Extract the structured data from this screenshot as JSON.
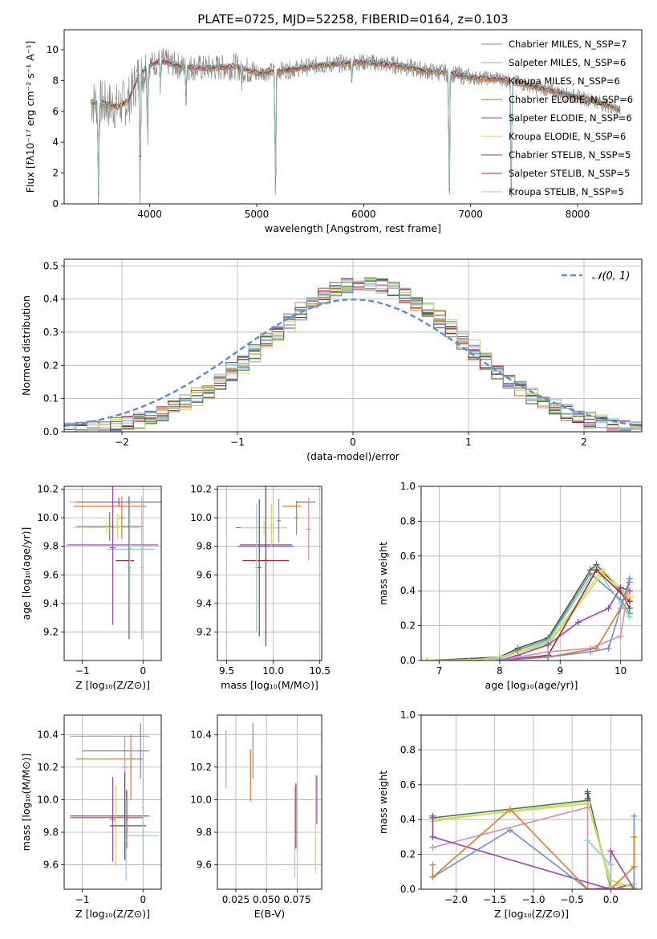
{
  "title": "PLATE=0725, MJD=52258, FIBERID=0164, z=0.103",
  "colors": [
    "#5d9e8b",
    "#e08aa8",
    "#e57a1f",
    "#6a8f2e",
    "#a13cc1",
    "#d7d84a",
    "#555555",
    "#b81f2b",
    "#7fd3d8",
    "#8c8c8c",
    "#6a8fd8",
    "#c5e06f",
    "#3a7b54",
    "#b4b4b4"
  ],
  "chart_data": [
    {
      "id": "spectrum",
      "type": "line",
      "xlabel": "wavelength [Angstrom, rest frame]",
      "ylabel": "Flux [fλ10⁻¹⁷ erg cm⁻² s⁻¹ A⁻¹]",
      "xlim": [
        3200,
        8600
      ],
      "ylim": [
        0,
        11.3
      ],
      "xticks": [
        4000,
        5000,
        6000,
        7000,
        8000
      ],
      "yticks": [
        0,
        2,
        4,
        6,
        8,
        10
      ],
      "grid": false,
      "legend_position": "right",
      "legend": [
        {
          "label": "Chabrier MILES, N_SSP=7",
          "color": "#5d9e8b"
        },
        {
          "label": "Salpeter MILES, N_SSP=6",
          "color": "#e08aa8"
        },
        {
          "label": "Kroupa MILES, N_SSP=6",
          "color": "#e57a1f"
        },
        {
          "label": "Chabrier ELODIE, N_SSP=6",
          "color": "#6a8f2e"
        },
        {
          "label": "Salpeter ELODIE, N_SSP=6",
          "color": "#a13cc1"
        },
        {
          "label": "Kroupa ELODIE, N_SSP=6",
          "color": "#d7d84a"
        },
        {
          "label": "Chabrier STELIB, N_SSP=5",
          "color": "#555555"
        },
        {
          "label": "Salpeter STELIB, N_SSP=5",
          "color": "#b81f2b"
        },
        {
          "label": "Kroupa STELIB, N_SSP=5",
          "color": "#7fd3d8"
        }
      ],
      "data_series": {
        "name": "data",
        "color": "#8c8c8c"
      },
      "continuum": {
        "x": [
          3450,
          3550,
          3700,
          3800,
          3900,
          4000,
          4100,
          4300,
          4500,
          4800,
          5000,
          5300,
          5600,
          6000,
          6300,
          6600,
          6800,
          7000,
          7300,
          7600,
          7900,
          8200,
          8400
        ],
        "y": [
          6.6,
          6.5,
          6.3,
          6.7,
          8.4,
          9.0,
          9.3,
          8.9,
          8.8,
          8.9,
          8.5,
          8.7,
          9.0,
          9.2,
          9.0,
          8.6,
          8.5,
          8.2,
          8.1,
          7.6,
          7.1,
          6.6,
          6.1
        ]
      },
      "absorption_features": [
        {
          "x": 3520,
          "y": 0
        },
        {
          "x": 3910,
          "y": 0
        },
        {
          "x": 3980,
          "y": 4.7
        },
        {
          "x": 4100,
          "y": 7.6
        },
        {
          "x": 4340,
          "y": 6.9
        },
        {
          "x": 4860,
          "y": 7.9
        },
        {
          "x": 5175,
          "y": 0
        },
        {
          "x": 5890,
          "y": 8.2
        },
        {
          "x": 6800,
          "y": 0
        },
        {
          "x": 7380,
          "y": 0
        }
      ]
    },
    {
      "id": "residual-histogram",
      "type": "histogram",
      "xlabel": "(data-model)/error",
      "ylabel": "Normed distribution",
      "xlim": [
        -2.5,
        2.5
      ],
      "ylim": [
        0,
        0.52
      ],
      "xticks": [
        -2,
        -1,
        0,
        1,
        2
      ],
      "yticks": [
        0.0,
        0.1,
        0.2,
        0.3,
        0.4,
        0.5
      ],
      "grid": true,
      "legend_position": "top-right",
      "legend": [
        {
          "label": "𝒩(0, 1)",
          "color": "#5b8bd9",
          "style": "dashed"
        }
      ],
      "bin_width": 0.1,
      "series_colors": [
        "#5d9e8b",
        "#e08aa8",
        "#e57a1f",
        "#6a8f2e",
        "#a13cc1",
        "#d7d84a",
        "#555555",
        "#b81f2b",
        "#7fd3d8",
        "#6a8fd8",
        "#c5e06f",
        "#3a7b54",
        "#b4b4b4"
      ]
    },
    {
      "id": "age-vs-z",
      "type": "errorbar",
      "xlabel": "Z [log₁₀(Z/Z⊙)]",
      "ylabel": "age  [log₁₀(age/yr)]",
      "xlim": [
        -1.3,
        0.3
      ],
      "ylim": [
        9.0,
        10.22
      ],
      "xticks": [
        -1,
        0
      ],
      "yticks": [
        9.2,
        9.4,
        9.6,
        9.8,
        10.0,
        10.2
      ],
      "grid": true,
      "points": [
        {
          "x": -0.55,
          "xerr": 0.65,
          "y": 10.11,
          "yerr": 0.0,
          "color": "#e08aa8"
        },
        {
          "x": -0.4,
          "xerr": 0.7,
          "y": 10.11,
          "yerr": 0.03,
          "color": "#a13cc1"
        },
        {
          "x": -0.55,
          "xerr": 0.6,
          "y": 10.08,
          "yerr": 0.0,
          "color": "#e57a1f"
        },
        {
          "x": -0.35,
          "xerr": 0.05,
          "y": 10.0,
          "yerr": 0.15,
          "color": "#e57a1f"
        },
        {
          "x": -0.55,
          "xerr": 0.55,
          "y": 9.94,
          "yerr": 0.1,
          "color": "#6a8f2e"
        },
        {
          "x": -0.6,
          "xerr": 0.55,
          "y": 9.93,
          "yerr": 0.04,
          "color": "#c5e06f"
        },
        {
          "x": -0.42,
          "xerr": 0.06,
          "y": 9.94,
          "yerr": 0.09,
          "color": "#d7d84a"
        },
        {
          "x": -0.2,
          "xerr": 0.4,
          "y": 9.78,
          "yerr": 0.01,
          "color": "#7fd3d8"
        },
        {
          "x": -0.5,
          "xerr": 0.75,
          "y": 9.81,
          "yerr": 0.0,
          "color": "#a13cc1"
        },
        {
          "x": -0.3,
          "xerr": 0.15,
          "y": 9.7,
          "yerr": 0.0,
          "color": "#b81f2b"
        },
        {
          "x": -0.5,
          "xerr": 0.05,
          "y": 9.79,
          "yerr": 0.54,
          "color": "#a13cc1"
        },
        {
          "x": -0.23,
          "xerr": 0.02,
          "y": 9.65,
          "yerr": 0.5,
          "color": "#555555"
        },
        {
          "x": -0.22,
          "xerr": 0.02,
          "y": 9.65,
          "yerr": 0.48,
          "color": "#7fd3d8"
        },
        {
          "x": -0.02,
          "xerr": 0.03,
          "y": 9.65,
          "yerr": 0.5,
          "color": "#b4b4b4"
        }
      ]
    },
    {
      "id": "age-vs-mass",
      "type": "errorbar",
      "xlabel": "mass [log₁₀(M/M⊙)]",
      "ylabel": "",
      "xlim": [
        9.4,
        10.52
      ],
      "ylim": [
        9.0,
        10.22
      ],
      "xticks": [
        9.5,
        10.0,
        10.5
      ],
      "yticks": [
        9.2,
        9.4,
        9.6,
        9.8,
        10.0,
        10.2
      ],
      "grid": true,
      "points": [
        {
          "x": 10.35,
          "xerr": 0.1,
          "y": 10.11,
          "yerr": 0.0,
          "color": "#a13cc1"
        },
        {
          "x": 10.38,
          "xerr": 0.02,
          "y": 9.92,
          "yerr": 0.22,
          "color": "#e08aa8"
        },
        {
          "x": 10.2,
          "xerr": 0.1,
          "y": 10.08,
          "yerr": 0.0,
          "color": "#e57a1f"
        },
        {
          "x": 10.25,
          "xerr": 0.02,
          "y": 10.0,
          "yerr": 0.12,
          "color": "#e57a1f"
        },
        {
          "x": 9.87,
          "xerr": 0.27,
          "y": 9.93,
          "yerr": 0.0,
          "color": "#6a8f2e"
        },
        {
          "x": 9.9,
          "xerr": 0.25,
          "y": 9.93,
          "yerr": 0.05,
          "color": "#c5e06f"
        },
        {
          "x": 9.92,
          "xerr": 0.28,
          "y": 9.81,
          "yerr": 0.0,
          "color": "#555555"
        },
        {
          "x": 9.92,
          "xerr": 0.3,
          "y": 9.8,
          "yerr": 0.0,
          "color": "#a13cc1"
        },
        {
          "x": 9.92,
          "xerr": 0.25,
          "y": 9.7,
          "yerr": 0.0,
          "color": "#b81f2b"
        },
        {
          "x": 9.92,
          "xerr": 0.02,
          "y": 9.7,
          "yerr": 0.6,
          "color": "#b81f2b"
        },
        {
          "x": 9.82,
          "xerr": 0.02,
          "y": 9.65,
          "yerr": 0.45,
          "color": "#7fd3d8"
        },
        {
          "x": 9.85,
          "xerr": 0.02,
          "y": 9.65,
          "yerr": 0.48,
          "color": "#555555"
        },
        {
          "x": 9.98,
          "xerr": 0.02,
          "y": 9.95,
          "yerr": 0.15,
          "color": "#d7d84a"
        },
        {
          "x": 10.06,
          "xerr": 0.02,
          "y": 9.98,
          "yerr": 0.15,
          "color": "#6a8fd8"
        }
      ]
    },
    {
      "id": "mass-weight-vs-age",
      "type": "line",
      "xlabel": "age  [log₁₀(age/yr)]",
      "ylabel": "mass weight",
      "xlim": [
        6.7,
        10.35
      ],
      "ylim": [
        0,
        1.0
      ],
      "xticks": [
        7,
        8,
        9,
        10
      ],
      "yticks": [
        0.0,
        0.2,
        0.4,
        0.6,
        0.8,
        1.0
      ],
      "grid": true,
      "series": [
        {
          "color": "#555555",
          "x": [
            6.8,
            8.0,
            8.3,
            8.8,
            9.5,
            9.6,
            10.0,
            10.15
          ],
          "y": [
            0.0,
            0.02,
            0.07,
            0.13,
            0.52,
            0.55,
            0.4,
            0.3
          ]
        },
        {
          "color": "#5d9e8b",
          "x": [
            6.8,
            8.0,
            8.3,
            8.8,
            9.5,
            10.0,
            10.15
          ],
          "y": [
            0.0,
            0.01,
            0.06,
            0.12,
            0.5,
            0.35,
            0.27
          ]
        },
        {
          "color": "#7fd3d8",
          "x": [
            6.8,
            8.0,
            8.8,
            9.6,
            10.0,
            10.15
          ],
          "y": [
            0.0,
            0.01,
            0.11,
            0.53,
            0.33,
            0.25
          ]
        },
        {
          "color": "#c5e06f",
          "x": [
            6.8,
            7.5,
            8.0,
            8.8,
            9.7,
            10.15
          ],
          "y": [
            0.0,
            0.0,
            0.02,
            0.1,
            0.52,
            0.37
          ]
        },
        {
          "color": "#d7d84a",
          "x": [
            6.8,
            7.5,
            8.0,
            8.8,
            9.7,
            10.15
          ],
          "y": [
            0.0,
            0.0,
            0.02,
            0.09,
            0.5,
            0.36
          ]
        },
        {
          "color": "#a13cc1",
          "x": [
            8.0,
            8.3,
            8.8,
            9.3,
            9.8,
            10.0,
            10.15
          ],
          "y": [
            0.0,
            0.03,
            0.09,
            0.22,
            0.3,
            0.42,
            0.4
          ]
        },
        {
          "color": "#b81f2b",
          "x": [
            8.0,
            8.8,
            9.6,
            10.15
          ],
          "y": [
            0.0,
            0.03,
            0.52,
            0.34
          ]
        },
        {
          "color": "#e08aa8",
          "x": [
            8.0,
            8.8,
            9.5,
            10.0,
            10.15
          ],
          "y": [
            0.0,
            0.05,
            0.07,
            0.14,
            0.47
          ]
        },
        {
          "color": "#e57a1f",
          "x": [
            8.0,
            8.8,
            9.6,
            10.0,
            10.15
          ],
          "y": [
            0.0,
            0.02,
            0.07,
            0.3,
            0.45
          ]
        },
        {
          "color": "#6a8fd8",
          "x": [
            8.0,
            8.8,
            9.5,
            9.8,
            10.15
          ],
          "y": [
            0.0,
            0.02,
            0.05,
            0.07,
            0.47
          ]
        }
      ]
    },
    {
      "id": "mass-vs-z",
      "type": "errorbar",
      "xlabel": "Z [log₁₀(Z/Z⊙)]",
      "ylabel": "mass [log₁₀(M/M⊙)]",
      "xlim": [
        -1.3,
        0.3
      ],
      "ylim": [
        9.45,
        10.52
      ],
      "xticks": [
        -1,
        0
      ],
      "yticks": [
        9.6,
        9.8,
        10.0,
        10.2,
        10.4
      ],
      "grid": true,
      "points": [
        {
          "x": -0.55,
          "xerr": 0.65,
          "y": 10.39,
          "yerr": 0.0,
          "color": "#e08aa8"
        },
        {
          "x": -0.3,
          "xerr": 0.05,
          "y": 10.2,
          "yerr": 0.19,
          "color": "#e08aa8"
        },
        {
          "x": -0.45,
          "xerr": 0.55,
          "y": 10.3,
          "yerr": 0.0,
          "color": "#6a8fd8"
        },
        {
          "x": -0.55,
          "xerr": 0.55,
          "y": 10.25,
          "yerr": 0.0,
          "color": "#e57a1f"
        },
        {
          "x": -0.2,
          "xerr": 0.02,
          "y": 10.2,
          "yerr": 0.2,
          "color": "#e57a1f"
        },
        {
          "x": -0.04,
          "xerr": 0.02,
          "y": 10.3,
          "yerr": 0.17,
          "color": "#6a8fd8"
        },
        {
          "x": -0.6,
          "xerr": 0.6,
          "y": 9.89,
          "yerr": 0.0,
          "color": "#6a8f2e"
        },
        {
          "x": -0.55,
          "xerr": 0.65,
          "y": 9.9,
          "yerr": 0.0,
          "color": "#a13cc1"
        },
        {
          "x": -0.5,
          "xerr": 0.04,
          "y": 9.88,
          "yerr": 0.26,
          "color": "#a13cc1"
        },
        {
          "x": -0.45,
          "xerr": 0.03,
          "y": 9.84,
          "yerr": 0.25,
          "color": "#d7d84a"
        },
        {
          "x": -0.25,
          "xerr": 0.3,
          "y": 9.84,
          "yerr": 0.0,
          "color": "#555555"
        },
        {
          "x": -0.3,
          "xerr": 0.02,
          "y": 9.9,
          "yerr": 0.27,
          "color": "#555555"
        },
        {
          "x": -0.27,
          "xerr": 0.02,
          "y": 9.88,
          "yerr": 0.18,
          "color": "#b81f2b"
        },
        {
          "x": -0.28,
          "xerr": 0.02,
          "y": 9.75,
          "yerr": 0.25,
          "color": "#7fd3d8"
        },
        {
          "x": 0.0,
          "xerr": 0.25,
          "y": 9.78,
          "yerr": 0.0,
          "color": "#7fd3d8"
        },
        {
          "x": 0.0,
          "xerr": 0.02,
          "y": 9.95,
          "yerr": 0.35,
          "color": "#b4b4b4"
        }
      ]
    },
    {
      "id": "mass-vs-ebv",
      "type": "errorbar",
      "xlabel": "E(B-V)",
      "ylabel": "",
      "xlim": [
        0.01,
        0.095
      ],
      "ylim": [
        9.45,
        10.52
      ],
      "xticks": [
        0.025,
        0.05,
        0.075
      ],
      "yticks": [
        9.6,
        9.8,
        10.0,
        10.2,
        10.4
      ],
      "grid": true,
      "points": [
        {
          "x": 0.017,
          "xerr": 0.0,
          "y": 10.25,
          "yerr": 0.18,
          "color": "#e08aa8"
        },
        {
          "x": 0.037,
          "xerr": 0.0,
          "y": 10.15,
          "yerr": 0.16,
          "color": "#e57a1f"
        },
        {
          "x": 0.039,
          "xerr": 0.0,
          "y": 10.3,
          "yerr": 0.17,
          "color": "#6a8fd8"
        },
        {
          "x": 0.073,
          "xerr": 0.0,
          "y": 9.8,
          "yerr": 0.28,
          "color": "#7fd3d8"
        },
        {
          "x": 0.074,
          "xerr": 0.0,
          "y": 9.9,
          "yerr": 0.2,
          "color": "#b81f2b"
        },
        {
          "x": 0.09,
          "xerr": 0.0,
          "y": 9.85,
          "yerr": 0.3,
          "color": "#d7d84a"
        },
        {
          "x": 0.091,
          "xerr": 0.0,
          "y": 10.0,
          "yerr": 0.15,
          "color": "#a13cc1"
        }
      ]
    },
    {
      "id": "mass-weight-vs-z",
      "type": "line",
      "xlabel": "Z [log₁₀(Z/Z⊙)]",
      "ylabel": "mass weight",
      "xlim": [
        -2.45,
        0.4
      ],
      "ylim": [
        0,
        1.0
      ],
      "xticks": [
        -2.0,
        -1.5,
        -1.0,
        -0.5,
        0.0
      ],
      "yticks": [
        0.0,
        0.2,
        0.4,
        0.6,
        0.8,
        1.0
      ],
      "grid": true,
      "series": [
        {
          "color": "#3a7b54",
          "x": [
            -2.3,
            -0.3,
            -0.3,
            0.0,
            0.3
          ],
          "y": [
            0.41,
            0.51,
            0.56,
            0.0,
            0.03
          ]
        },
        {
          "color": "#c5e06f",
          "x": [
            -2.3,
            -1.3,
            -0.3,
            0.0,
            0.3
          ],
          "y": [
            0.39,
            0.45,
            0.5,
            0.02,
            0.03
          ]
        },
        {
          "color": "#d7d84a",
          "x": [
            -2.3,
            -0.3,
            -0.3,
            0.0,
            0.3
          ],
          "y": [
            0.4,
            0.49,
            0.5,
            0.05,
            0.01
          ]
        },
        {
          "color": "#e08aa8",
          "x": [
            -2.3,
            -0.3,
            -0.3,
            0.0,
            0.3
          ],
          "y": [
            0.24,
            0.47,
            0.0,
            0.01,
            0.0
          ]
        },
        {
          "color": "#a13cc1",
          "x": [
            -2.3,
            -2.3,
            0.0,
            0.0,
            0.3
          ],
          "y": [
            0.42,
            0.3,
            0.0,
            0.22,
            0.0
          ]
        },
        {
          "color": "#6a8fd8",
          "x": [
            -2.3,
            -1.3,
            -0.3,
            0.0,
            0.3,
            0.3
          ],
          "y": [
            0.07,
            0.34,
            0.0,
            0.0,
            0.0,
            0.42
          ]
        },
        {
          "color": "#e57a1f",
          "x": [
            -2.3,
            -2.3,
            -1.3,
            -0.3,
            0.0,
            0.3,
            0.3
          ],
          "y": [
            0.14,
            0.07,
            0.46,
            0.0,
            0.0,
            0.13,
            0.3
          ]
        },
        {
          "color": "#7fd3d8",
          "x": [
            -0.3,
            0.0,
            0.0
          ],
          "y": [
            0.28,
            0.14,
            0.0
          ]
        },
        {
          "color": "#555555",
          "x": [
            -0.3,
            -0.3
          ],
          "y": [
            0.52,
            0.55
          ]
        }
      ]
    }
  ]
}
